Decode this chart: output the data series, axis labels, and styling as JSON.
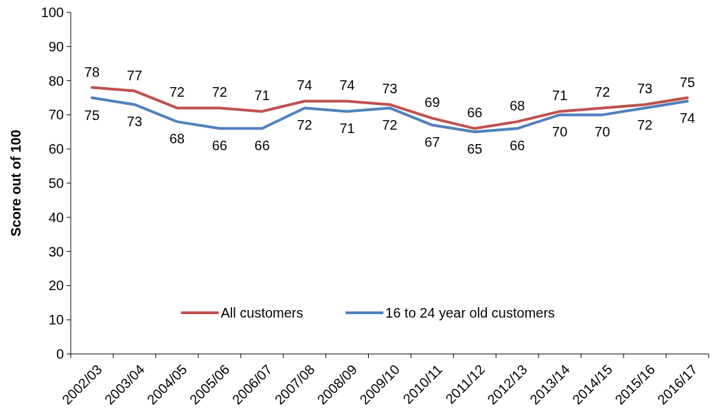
{
  "chart_data": {
    "type": "line",
    "ylabel": "Score out of 100",
    "categories": [
      "2002/03",
      "2003/04",
      "2004/05",
      "2005/06",
      "2006/07",
      "2007/08",
      "2008/09",
      "2009/10",
      "2010/11",
      "2011/12",
      "2012/13",
      "2013/14",
      "2014/15",
      "2015/16",
      "2016/17"
    ],
    "series": [
      {
        "name": "All customers",
        "color": "#c0504d",
        "values": [
          78,
          77,
          72,
          72,
          71,
          74,
          74,
          73,
          69,
          66,
          68,
          71,
          72,
          73,
          75
        ]
      },
      {
        "name": "16 to 24 year old customers",
        "color": "#4f81bd",
        "values": [
          75,
          73,
          68,
          66,
          66,
          72,
          71,
          72,
          67,
          65,
          66,
          70,
          70,
          72,
          74
        ]
      }
    ],
    "ylim": [
      0,
      100
    ],
    "yticks": [
      0,
      10,
      20,
      30,
      40,
      50,
      60,
      70,
      80,
      90,
      100
    ],
    "grid": false,
    "legend": "bottom",
    "data_labels": true,
    "marker": "none",
    "line_style": "solid"
  }
}
